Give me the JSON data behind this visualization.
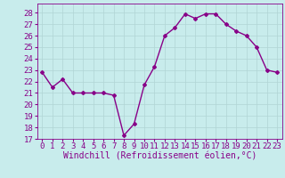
{
  "x": [
    0,
    1,
    2,
    3,
    4,
    5,
    6,
    7,
    8,
    9,
    10,
    11,
    12,
    13,
    14,
    15,
    16,
    17,
    18,
    19,
    20,
    21,
    22,
    23
  ],
  "y": [
    22.8,
    21.5,
    22.2,
    21.0,
    21.0,
    21.0,
    21.0,
    20.8,
    17.3,
    18.3,
    21.7,
    23.3,
    26.0,
    26.7,
    27.9,
    27.5,
    27.9,
    27.9,
    27.0,
    26.4,
    26.0,
    25.0,
    23.0,
    22.8
  ],
  "line_color": "#880088",
  "marker": "D",
  "marker_size": 2.0,
  "bg_color": "#c8ecec",
  "grid_color": "#b0d4d4",
  "xlabel": "Windchill (Refroidissement éolien,°C)",
  "xlabel_color": "#880088",
  "xlabel_fontsize": 7.0,
  "yticks": [
    17,
    18,
    19,
    20,
    21,
    22,
    23,
    24,
    25,
    26,
    27,
    28
  ],
  "xlim": [
    -0.5,
    23.5
  ],
  "ylim": [
    17.0,
    28.8
  ],
  "tick_fontsize": 6.5,
  "line_width": 1.0
}
